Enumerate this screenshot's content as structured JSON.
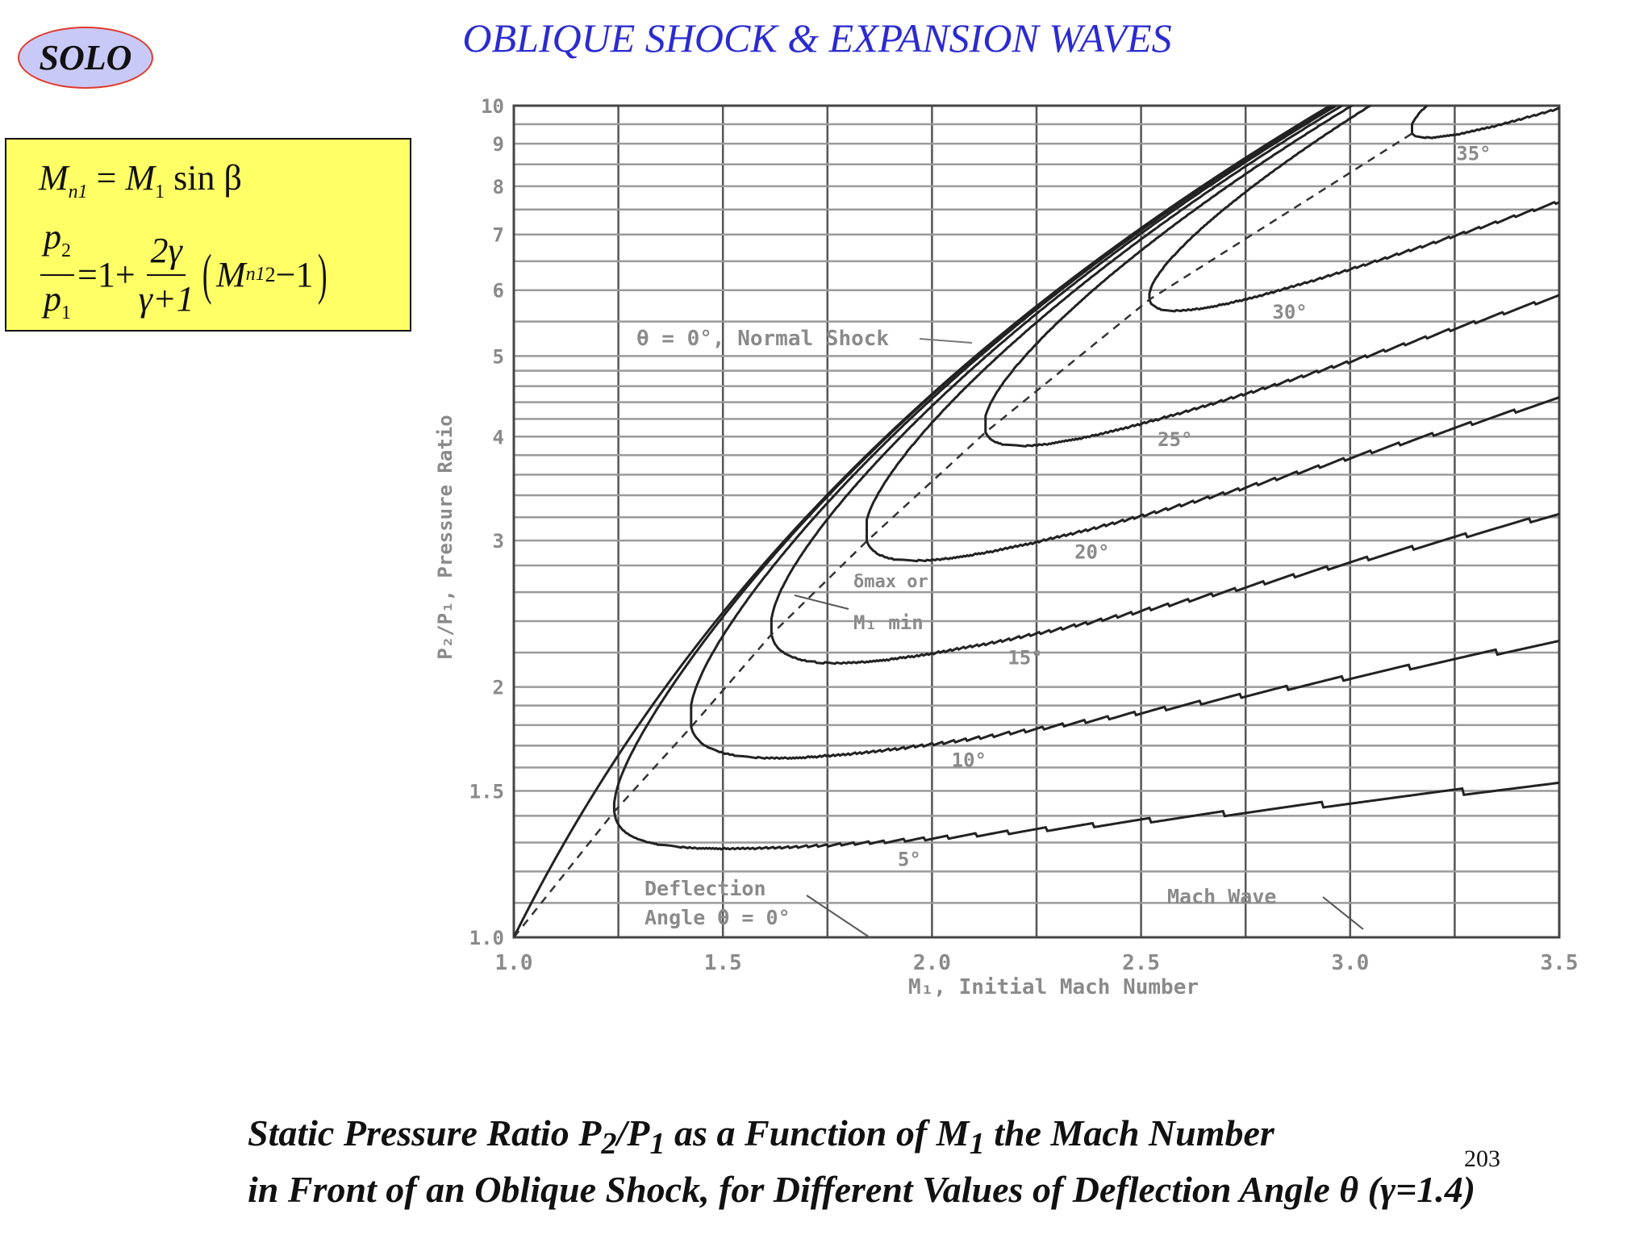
{
  "badge": "SOLO",
  "title": "OBLIQUE SHOCK & EXPANSION WAVES",
  "formula": {
    "line1": {
      "lhs": "M",
      "lhs_sub": "n1",
      "eq": "=",
      "rhs": "M",
      "rhs_sub": "1",
      "rest": "sin β"
    },
    "line2": {
      "num": "p",
      "num_sub": "2",
      "den": "p",
      "den_sub": "1",
      "eq": "=1+",
      "frac_num": "2γ",
      "frac_den": "γ+1",
      "m": "M",
      "m_sub": "n1",
      "m_sup": "2",
      "tail": "−1"
    }
  },
  "chart_data": {
    "type": "line",
    "xlabel": "M₁, Initial Mach Number",
    "ylabel": "P₂/P₁, Pressure Ratio",
    "xlim": [
      1.0,
      3.5
    ],
    "ylim": [
      1.0,
      10
    ],
    "yscale": "log",
    "grid": true,
    "gamma": 1.4,
    "x_ticks": [
      "1.0",
      "1.5",
      "2.0",
      "2.5",
      "3.0",
      "3.5"
    ],
    "x_tick_values": [
      1.0,
      1.5,
      2.0,
      2.5,
      3.0,
      3.5
    ],
    "y_ticks": [
      "1.0",
      "1.5",
      "2",
      "3",
      "4",
      "5",
      "6",
      "7",
      "8",
      "9",
      "10"
    ],
    "y_tick_values": [
      1.0,
      1.5,
      2,
      3,
      4,
      5,
      6,
      7,
      8,
      9,
      10
    ],
    "series": [
      {
        "name": "5°",
        "theta_deg": 5
      },
      {
        "name": "10°",
        "theta_deg": 10
      },
      {
        "name": "15°",
        "theta_deg": 15
      },
      {
        "name": "20°",
        "theta_deg": 20
      },
      {
        "name": "25°",
        "theta_deg": 25
      },
      {
        "name": "30°",
        "theta_deg": 30
      },
      {
        "name": "35°",
        "theta_deg": 35
      }
    ],
    "annotations": {
      "normal_shock": "θ = 0°, Normal Shock",
      "dmax_1": "δmax or",
      "dmax_2": "M₁ min",
      "deflection_1": "Deflection",
      "deflection_2": "Angle θ = 0°",
      "mach_wave": "Mach Wave"
    }
  },
  "caption": {
    "line1_a": "Static Pressure Ratio P",
    "line1_sub2": "2",
    "line1_b": "/P",
    "line1_sub1": "1",
    "line1_c": " as a Function of M",
    "line1_subM": "1",
    "line1_d": " the Mach Number",
    "line2": "in Front of an Oblique Shock, for Different Values of Deflection Angle θ (γ=1.4)"
  },
  "page_number": "203"
}
